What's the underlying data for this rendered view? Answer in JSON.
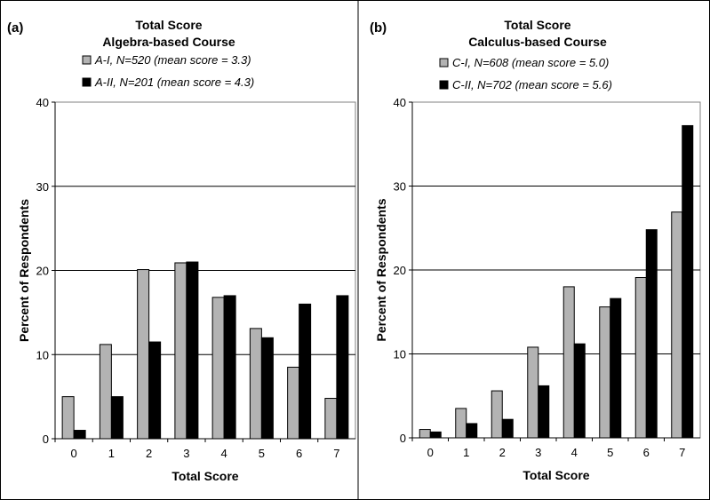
{
  "chart_data": [
    {
      "type": "bar",
      "panel": "(a)",
      "title": "Total Score",
      "subtitle": "Algebra-based Course",
      "xlabel": "Total Score",
      "ylabel": "Percent of Respondents",
      "ylim": [
        0,
        40
      ],
      "yticks": [
        0,
        10,
        20,
        30,
        40
      ],
      "grid": true,
      "legend_position": "top",
      "categories": [
        "0",
        "1",
        "2",
        "3",
        "4",
        "5",
        "6",
        "7"
      ],
      "series": [
        {
          "name": "A-I, N=520 (mean score = 3.3)",
          "color": "#b3b3b3",
          "values": [
            5.0,
            11.2,
            20.1,
            20.9,
            16.8,
            13.1,
            8.5,
            4.8
          ]
        },
        {
          "name": "A-II, N=201 (mean score = 4.3)",
          "color": "#000000",
          "values": [
            1.0,
            5.0,
            11.5,
            21.0,
            17.0,
            12.0,
            16.0,
            17.0
          ]
        }
      ]
    },
    {
      "type": "bar",
      "panel": "(b)",
      "title": "Total Score",
      "subtitle": "Calculus-based Course",
      "xlabel": "Total Score",
      "ylabel": "Percent of Respondents",
      "ylim": [
        0,
        40
      ],
      "yticks": [
        0,
        10,
        20,
        30,
        40
      ],
      "grid": true,
      "legend_position": "top",
      "categories": [
        "0",
        "1",
        "2",
        "3",
        "4",
        "5",
        "6",
        "7"
      ],
      "series": [
        {
          "name": "C-I, N=608 (mean score = 5.0)",
          "color": "#b3b3b3",
          "values": [
            1.0,
            3.5,
            5.6,
            10.8,
            18.0,
            15.6,
            19.1,
            26.9
          ]
        },
        {
          "name": "C-II, N=702 (mean score = 5.6)",
          "color": "#000000",
          "values": [
            0.7,
            1.7,
            2.2,
            6.2,
            11.2,
            16.6,
            24.8,
            37.2
          ]
        }
      ]
    }
  ]
}
